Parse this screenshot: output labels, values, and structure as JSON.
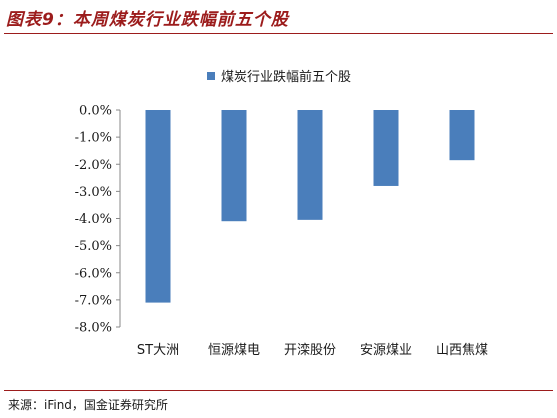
{
  "figure": {
    "title": "图表9：本周煤炭行业跌幅前五个股",
    "source": "来源：iFind，国金证券研究所"
  },
  "chart_data": {
    "type": "bar",
    "categories": [
      "ST大洲",
      "恒源煤电",
      "开滦股份",
      "安源煤业",
      "山西焦煤"
    ],
    "series": [
      {
        "name": "煤炭行业跌幅前五个股",
        "values": [
          -7.1,
          -4.1,
          -4.05,
          -2.8,
          -1.85
        ]
      }
    ],
    "ylim": [
      -8.0,
      0.0
    ],
    "yticks": [
      0.0,
      -1.0,
      -2.0,
      -3.0,
      -4.0,
      -5.0,
      -6.0,
      -7.0,
      -8.0
    ],
    "ytick_format": "percent-1dp",
    "legend": "top-center",
    "grid": false,
    "colors": {
      "bar": "#4a7ebb",
      "title": "#9c1c1c"
    }
  }
}
